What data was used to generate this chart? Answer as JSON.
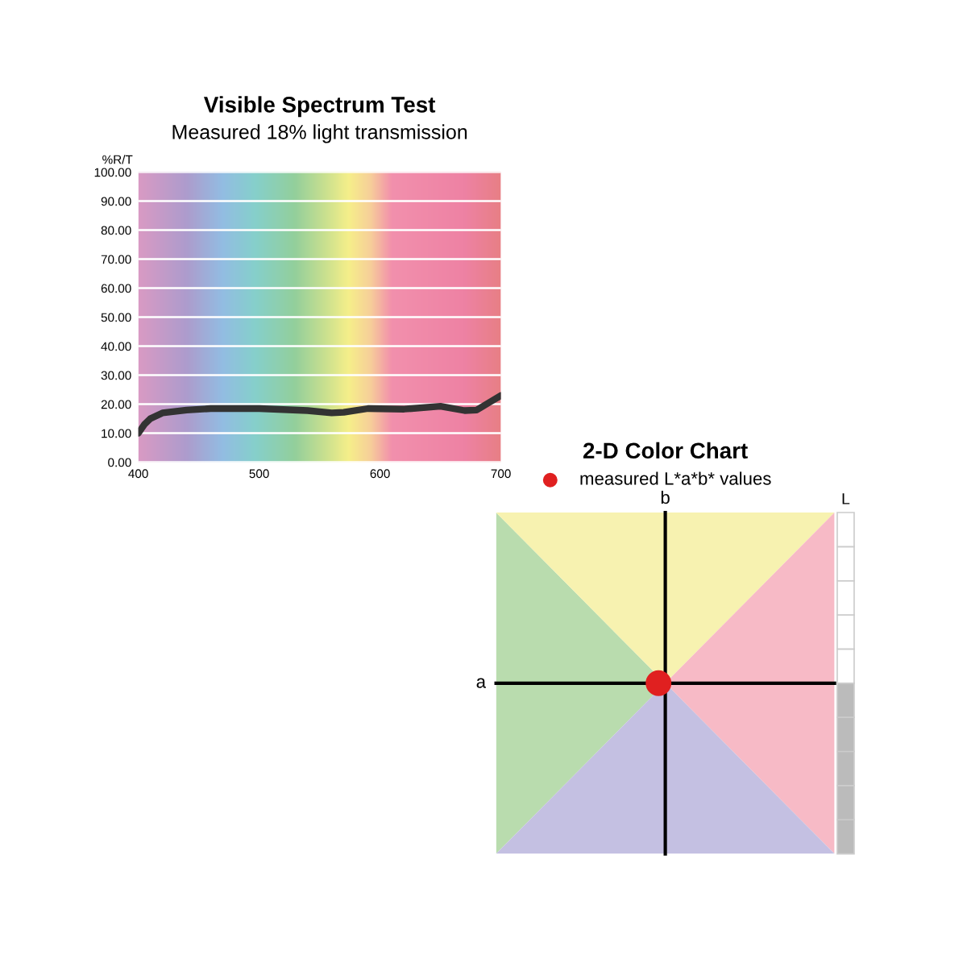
{
  "chart_data": [
    {
      "type": "line",
      "title": "Visible Spectrum Test",
      "subtitle": "Measured 18% light transmission",
      "ylabel": "%R/T",
      "x": [
        400,
        405,
        410,
        420,
        440,
        460,
        500,
        540,
        560,
        570,
        590,
        620,
        650,
        670,
        680,
        690,
        700
      ],
      "series": [
        {
          "color": "#333333",
          "values": [
            10,
            13,
            15,
            17,
            18,
            18.5,
            18.5,
            17.8,
            17,
            17.2,
            18.5,
            18.3,
            19.3,
            17.8,
            18,
            20.5,
            23
          ]
        }
      ],
      "xlim": [
        400,
        700
      ],
      "xticks": [
        400,
        500,
        600,
        700
      ],
      "ylim": [
        0,
        100
      ],
      "yticks": [
        {
          "value": 0,
          "label": "0.00"
        },
        {
          "value": 10,
          "label": "10.00"
        },
        {
          "value": 20,
          "label": "20.00"
        },
        {
          "value": 30,
          "label": "30.00"
        },
        {
          "value": 40,
          "label": "40.00"
        },
        {
          "value": 50,
          "label": "50.00"
        },
        {
          "value": 60,
          "label": "60.00"
        },
        {
          "value": 70,
          "label": "70.00"
        },
        {
          "value": 80,
          "label": "80.00"
        },
        {
          "value": 90,
          "label": "90.00"
        },
        {
          "value": 100,
          "label": "100.00"
        }
      ],
      "grid": "y",
      "line_style": "solid"
    },
    {
      "type": "other",
      "title": "2-D Color Chart",
      "subtitle": "measured L*a*b* values",
      "xlabel": "a",
      "ylabel": "b",
      "annotations": [
        "L"
      ]
    }
  ]
}
